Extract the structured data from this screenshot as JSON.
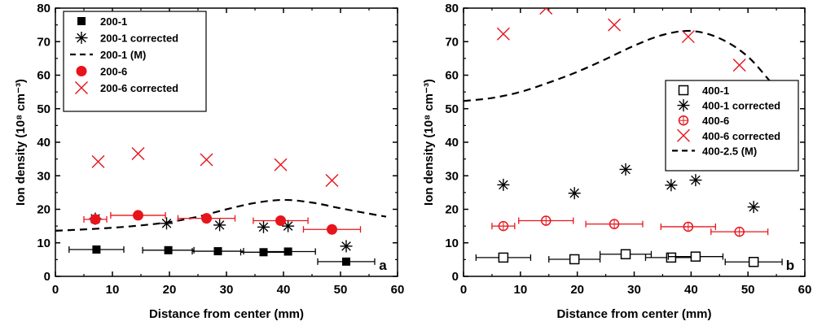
{
  "chart_data": [
    {
      "panel": "a",
      "type": "scatter",
      "xlabel": "Distance from center (mm)",
      "ylabel": "Ion density (10⁸ cm⁻³)",
      "xlim": [
        0,
        60
      ],
      "ylim": [
        0,
        80
      ],
      "xticks": [
        "0",
        "10",
        "20",
        "30",
        "40",
        "50",
        "60"
      ],
      "yticks": [
        "0",
        "10",
        "20",
        "30",
        "40",
        "50",
        "60",
        "70",
        "80"
      ],
      "legend_position": "top-left",
      "series": [
        {
          "name": "200-1",
          "marker": "filled-square",
          "color": "#000000",
          "points": [
            {
              "x": 7.2,
              "y": 8.0,
              "xerr": 4.8
            },
            {
              "x": 19.8,
              "y": 7.8,
              "xerr": 4.5
            },
            {
              "x": 28.5,
              "y": 7.5,
              "xerr": 4.5
            },
            {
              "x": 36.5,
              "y": 7.2,
              "xerr": 4.0
            },
            {
              "x": 40.8,
              "y": 7.4,
              "xerr": 4.8
            },
            {
              "x": 51.0,
              "y": 4.4,
              "xerr": 5.0
            }
          ]
        },
        {
          "name": "200-1 corrected",
          "marker": "asterisk",
          "color": "#000000",
          "points": [
            {
              "x": 7.0,
              "y": 17.2
            },
            {
              "x": 19.5,
              "y": 15.8
            },
            {
              "x": 28.8,
              "y": 15.3
            },
            {
              "x": 36.5,
              "y": 14.7
            },
            {
              "x": 40.8,
              "y": 15.0
            },
            {
              "x": 51.0,
              "y": 9.0
            }
          ]
        },
        {
          "name": "200-1 (M)",
          "marker": "dashed-line",
          "color": "#000000",
          "points": [
            {
              "x": 0,
              "y": 13.6
            },
            {
              "x": 5,
              "y": 14.0
            },
            {
              "x": 10,
              "y": 14.5
            },
            {
              "x": 15,
              "y": 15.2
            },
            {
              "x": 20,
              "y": 16.2
            },
            {
              "x": 25,
              "y": 17.8
            },
            {
              "x": 30,
              "y": 20.0
            },
            {
              "x": 35,
              "y": 21.9
            },
            {
              "x": 40,
              "y": 22.8
            },
            {
              "x": 45,
              "y": 22.0
            },
            {
              "x": 50,
              "y": 20.3
            },
            {
              "x": 55,
              "y": 18.7
            },
            {
              "x": 58,
              "y": 17.8
            }
          ]
        },
        {
          "name": "200-6",
          "marker": "filled-circle",
          "color": "#e8141c",
          "points": [
            {
              "x": 7.0,
              "y": 17.0,
              "xerr": 2.0
            },
            {
              "x": 14.5,
              "y": 18.2,
              "xerr": 4.8
            },
            {
              "x": 26.5,
              "y": 17.3,
              "xerr": 5.0
            },
            {
              "x": 39.5,
              "y": 16.6,
              "xerr": 4.8
            },
            {
              "x": 48.5,
              "y": 14.0,
              "xerr": 5.0
            }
          ]
        },
        {
          "name": "200-6 corrected",
          "marker": "x",
          "color": "#e8141c",
          "points": [
            {
              "x": 7.5,
              "y": 34.2
            },
            {
              "x": 14.5,
              "y": 36.6
            },
            {
              "x": 26.5,
              "y": 34.8
            },
            {
              "x": 39.5,
              "y": 33.3
            },
            {
              "x": 48.5,
              "y": 28.6
            }
          ]
        }
      ]
    },
    {
      "panel": "b",
      "type": "scatter",
      "xlabel": "Distance from center (mm)",
      "ylabel": "Ion density (10⁸ cm⁻³)",
      "xlim": [
        0,
        60
      ],
      "ylim": [
        0,
        80
      ],
      "xticks": [
        "0",
        "10",
        "20",
        "30",
        "40",
        "50",
        "60"
      ],
      "yticks": [
        "0",
        "10",
        "20",
        "30",
        "40",
        "50",
        "60",
        "70",
        "80"
      ],
      "legend_position": "right",
      "series": [
        {
          "name": "400-1",
          "marker": "open-square",
          "color": "#000000",
          "points": [
            {
              "x": 7.0,
              "y": 5.6,
              "xerr": 4.8
            },
            {
              "x": 19.5,
              "y": 5.1,
              "xerr": 4.5
            },
            {
              "x": 28.5,
              "y": 6.6,
              "xerr": 4.5
            },
            {
              "x": 36.5,
              "y": 5.6,
              "xerr": 4.5
            },
            {
              "x": 40.8,
              "y": 5.9,
              "xerr": 4.8
            },
            {
              "x": 51.0,
              "y": 4.3,
              "xerr": 5.0
            }
          ]
        },
        {
          "name": "400-1 corrected",
          "marker": "asterisk",
          "color": "#000000",
          "points": [
            {
              "x": 7.0,
              "y": 27.3
            },
            {
              "x": 19.5,
              "y": 24.8
            },
            {
              "x": 28.5,
              "y": 31.9
            },
            {
              "x": 36.5,
              "y": 27.2
            },
            {
              "x": 40.8,
              "y": 28.7
            },
            {
              "x": 51.0,
              "y": 20.7
            }
          ]
        },
        {
          "name": "400-6",
          "marker": "open-circle-cross",
          "color": "#e8141c",
          "points": [
            {
              "x": 7.0,
              "y": 15.0,
              "xerr": 2.0
            },
            {
              "x": 14.5,
              "y": 16.6,
              "xerr": 4.8
            },
            {
              "x": 26.5,
              "y": 15.6,
              "xerr": 5.0
            },
            {
              "x": 39.5,
              "y": 14.8,
              "xerr": 4.8
            },
            {
              "x": 48.5,
              "y": 13.3,
              "xerr": 5.0
            }
          ]
        },
        {
          "name": "400-6 corrected",
          "marker": "x",
          "color": "#e8141c",
          "points": [
            {
              "x": 7.0,
              "y": 72.3
            },
            {
              "x": 14.5,
              "y": 80.0
            },
            {
              "x": 26.5,
              "y": 75.0
            },
            {
              "x": 39.5,
              "y": 71.5
            },
            {
              "x": 48.5,
              "y": 63.0
            }
          ]
        },
        {
          "name": "400-2.5 (M)",
          "marker": "dashed-line",
          "color": "#000000",
          "points": [
            {
              "x": 0,
              "y": 52.3
            },
            {
              "x": 5,
              "y": 53.2
            },
            {
              "x": 10,
              "y": 55.0
            },
            {
              "x": 15,
              "y": 57.8
            },
            {
              "x": 20,
              "y": 61.0
            },
            {
              "x": 25,
              "y": 64.8
            },
            {
              "x": 30,
              "y": 68.8
            },
            {
              "x": 35,
              "y": 72.0
            },
            {
              "x": 40,
              "y": 73.2
            },
            {
              "x": 45,
              "y": 71.0
            },
            {
              "x": 50,
              "y": 65.5
            },
            {
              "x": 55,
              "y": 56.0
            },
            {
              "x": 58,
              "y": 51.0
            }
          ]
        }
      ]
    }
  ]
}
